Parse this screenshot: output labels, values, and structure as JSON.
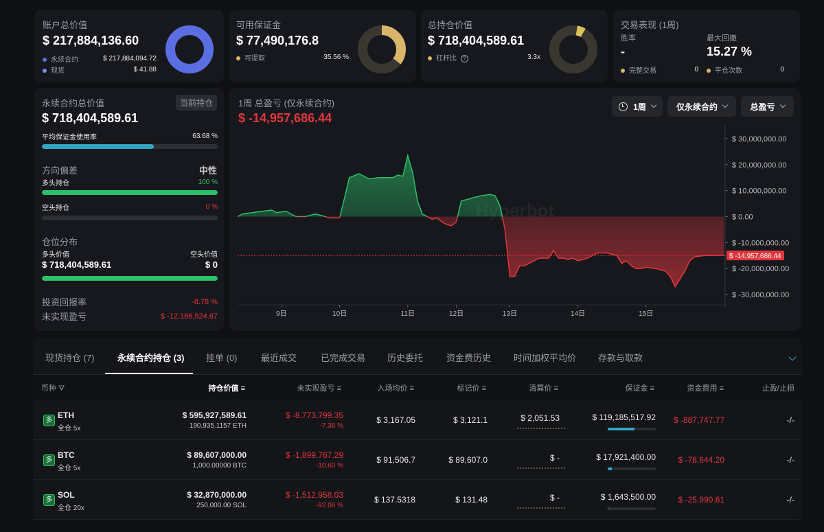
{
  "top": {
    "account": {
      "title": "账户总价值",
      "value": "$ 217,884,136.60",
      "l1": "永续合约",
      "v1": "$ 217,884,094.72",
      "l2": "现货",
      "v2": "$ 41.88",
      "color1": "#5b6ee1",
      "color2": "#7a8ff0"
    },
    "margin": {
      "title": "可用保证金",
      "value": "$ 77,490,176.8",
      "l1": "可提取",
      "v1": "35.56 %",
      "color": "#d9b56a",
      "pct": 35.56
    },
    "position": {
      "title": "总持仓价值",
      "value": "$ 718,404,589.61",
      "l1": "杠杆比",
      "v1": "3.3x",
      "icon": "question-icon"
    },
    "perf": {
      "title": "交易表现 (1周)",
      "winrate_label": "胜率",
      "winrate": "-",
      "dd_label": "最大回撤",
      "dd": "15.27 %",
      "l1": "完整交易",
      "v1": "0",
      "l2": "平仓次数",
      "v2": "0"
    }
  },
  "perp": {
    "title": "永续合约总价值",
    "tag": "当前持仓",
    "value": "$ 718,404,589.61",
    "margin_usage_label": "平均保证金使用率",
    "margin_usage": "63.68 %",
    "margin_usage_pct": 63.68,
    "bias_label": "方向偏差",
    "bias_value": "中性",
    "long_label": "多头持仓",
    "long_pct": "100 %",
    "short_label": "空头持仓",
    "short_pct": "0 %",
    "dist_label": "仓位分布",
    "long_val_label": "多头价值",
    "short_val_label": "空头价值",
    "long_val": "$ 718,404,589.61",
    "short_val": "$ 0",
    "roi_label": "投资回报率",
    "roi": "-8.78 %",
    "upnl_label": "未实现盈亏",
    "upnl": "$ -12,186,524.67"
  },
  "chart_data": {
    "type": "area",
    "title": "1周 总盈亏 (仅永续合约)",
    "current": "$ -14,957,686.44",
    "current_value": -14957686.44,
    "watermark": "Hyperbot",
    "controls": [
      "1周",
      "仅永续合约",
      "总盈亏"
    ],
    "ylim": [
      -35000000,
      35000000
    ],
    "yticks": [
      "$ 30,000,000.00",
      "$ 20,000,000.00",
      "$ 10,000,000.00",
      "$ 0.00",
      "$ -10,000,000.00",
      "$ -20,000,000.00",
      "$ -30,000,000.00"
    ],
    "ytick_values": [
      30000000,
      20000000,
      10000000,
      0,
      -10000000,
      -20000000,
      -30000000
    ],
    "xticks": [
      "9日",
      "10日",
      "11日",
      "12日",
      "13日",
      "14日",
      "15日"
    ],
    "xtick_pos": [
      0.09,
      0.21,
      0.35,
      0.45,
      0.56,
      0.7,
      0.84
    ],
    "x": [
      0,
      0.01,
      0.03,
      0.05,
      0.07,
      0.08,
      0.1,
      0.12,
      0.14,
      0.16,
      0.18,
      0.19,
      0.2,
      0.21,
      0.23,
      0.25,
      0.27,
      0.29,
      0.3,
      0.31,
      0.32,
      0.33,
      0.34,
      0.35,
      0.36,
      0.37,
      0.38,
      0.4,
      0.41,
      0.42,
      0.43,
      0.44,
      0.45,
      0.46,
      0.48,
      0.5,
      0.52,
      0.53,
      0.54,
      0.55,
      0.56,
      0.57,
      0.58,
      0.59,
      0.6,
      0.62,
      0.64,
      0.65,
      0.66,
      0.67,
      0.68,
      0.69,
      0.7,
      0.72,
      0.74,
      0.76,
      0.78,
      0.79,
      0.8,
      0.81,
      0.82,
      0.83,
      0.84,
      0.86,
      0.88,
      0.89,
      0.9,
      0.91,
      0.92,
      0.93,
      0.94,
      0.96,
      0.97,
      1.0
    ],
    "y": [
      0,
      1,
      1.5,
      2,
      2.5,
      1.5,
      2,
      0,
      0,
      1,
      0,
      -0.5,
      -0.5,
      -0.5,
      15,
      16.5,
      14.5,
      15,
      15,
      15,
      15,
      16,
      15.5,
      23.5,
      17,
      6,
      1,
      -1,
      -0.5,
      -2,
      -3,
      -3.5,
      -2,
      6,
      7,
      8,
      8.5,
      8,
      4,
      -5,
      -23,
      -23,
      -19,
      -19,
      -18,
      -16,
      -16,
      -13,
      -16,
      -16,
      -16.5,
      -16,
      -17,
      -16,
      -14,
      -14,
      -15,
      -18,
      -17,
      -19,
      -20,
      -20,
      -19.5,
      -20,
      -21,
      -23,
      -27,
      -24,
      -21,
      -17,
      -15.5,
      -15,
      -15,
      -14.96
    ]
  },
  "tabs": [
    "现货持仓 (7)",
    "永续合约持仓 (3)",
    "挂单 (0)",
    "最近成交",
    "已完成交易",
    "历史委托",
    "资金费历史",
    "时间加权平均价",
    "存款与取款"
  ],
  "table": {
    "headers": [
      "币种",
      "持仓价值",
      "未实现盈亏",
      "入场均价",
      "标记价",
      "清算价",
      "保证金",
      "资金费用",
      "止盈/止损"
    ],
    "rows": [
      {
        "badge": "多",
        "coin": "ETH",
        "mode": "全仓 5x",
        "value": "$ 595,927,589.61",
        "qty": "190,935.1157 ETH",
        "pnl": "$ -8,773,799.35",
        "pnl_pct": "-7.36 %",
        "entry": "$ 3,167.05",
        "mark": "$ 3,121.1",
        "liq": "$ 2,051.53",
        "margin": "$ 119,185,517.92",
        "margin_pct": 55,
        "funding": "$ -887,747.77",
        "tpsl": "-/-"
      },
      {
        "badge": "多",
        "coin": "BTC",
        "mode": "全仓 5x",
        "value": "$ 89,607,000.00",
        "qty": "1,000.00000 BTC",
        "pnl": "$ -1,899,767.29",
        "pnl_pct": "-10.60 %",
        "entry": "$ 91,506.7",
        "mark": "$ 89,607.0",
        "liq": "$ -",
        "margin": "$ 17,921,400.00",
        "margin_pct": 8,
        "funding": "$ -78,644.20",
        "tpsl": "-/-"
      },
      {
        "badge": "多",
        "coin": "SOL",
        "mode": "全仓 20x",
        "value": "$ 32,870,000.00",
        "qty": "250,000.00 SOL",
        "pnl": "$ -1,512,958.03",
        "pnl_pct": "-92.06 %",
        "entry": "$ 137.5318",
        "mark": "$ 131.48",
        "liq": "$ -",
        "margin": "$ 1,643,500.00",
        "margin_pct": 2,
        "funding": "$ -25,990.61",
        "tpsl": "-/-"
      }
    ]
  }
}
